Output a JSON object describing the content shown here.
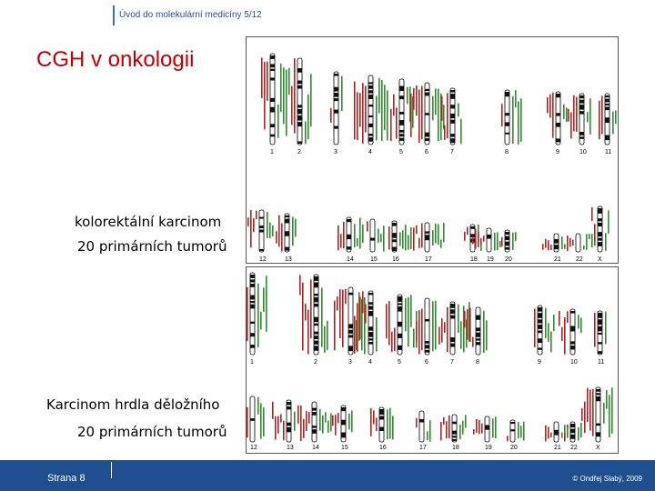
{
  "header": {
    "text": "Úvod do molekulární medicíny 5/12"
  },
  "slide": {
    "title": "CGH  v onkologii",
    "section1_title": "kolorektální karcinom",
    "section1_subtitle": "20 primárních tumorů",
    "section2_title": "Karcinom hrdla děložního",
    "section2_subtitle": "20 primárních tumorů"
  },
  "figure1": {
    "row1_labels": [
      "1",
      "2",
      "3",
      "4",
      "5",
      "6",
      "7",
      "8",
      "9",
      "10",
      "11"
    ],
    "row2_labels": [
      "12",
      "13",
      "14",
      "15",
      "16",
      "17",
      "18",
      "19",
      "20",
      "21",
      "22",
      "X"
    ]
  },
  "figure2": {
    "row1_labels": [
      "1",
      "2",
      "3",
      "4",
      "5",
      "6",
      "7",
      "8",
      "9",
      "10",
      "11"
    ],
    "row2_labels": [
      "12",
      "13",
      "14",
      "15",
      "16",
      "17",
      "18",
      "19",
      "20",
      "21",
      "22",
      "X"
    ]
  },
  "footer": {
    "page": "Strana 8",
    "copyright": "© Ondřej Slabý, 2009"
  },
  "colors": {
    "gain": "#2e8b2e",
    "loss": "#b22222",
    "footer": "#1f4f8f",
    "title": "#c00000"
  }
}
